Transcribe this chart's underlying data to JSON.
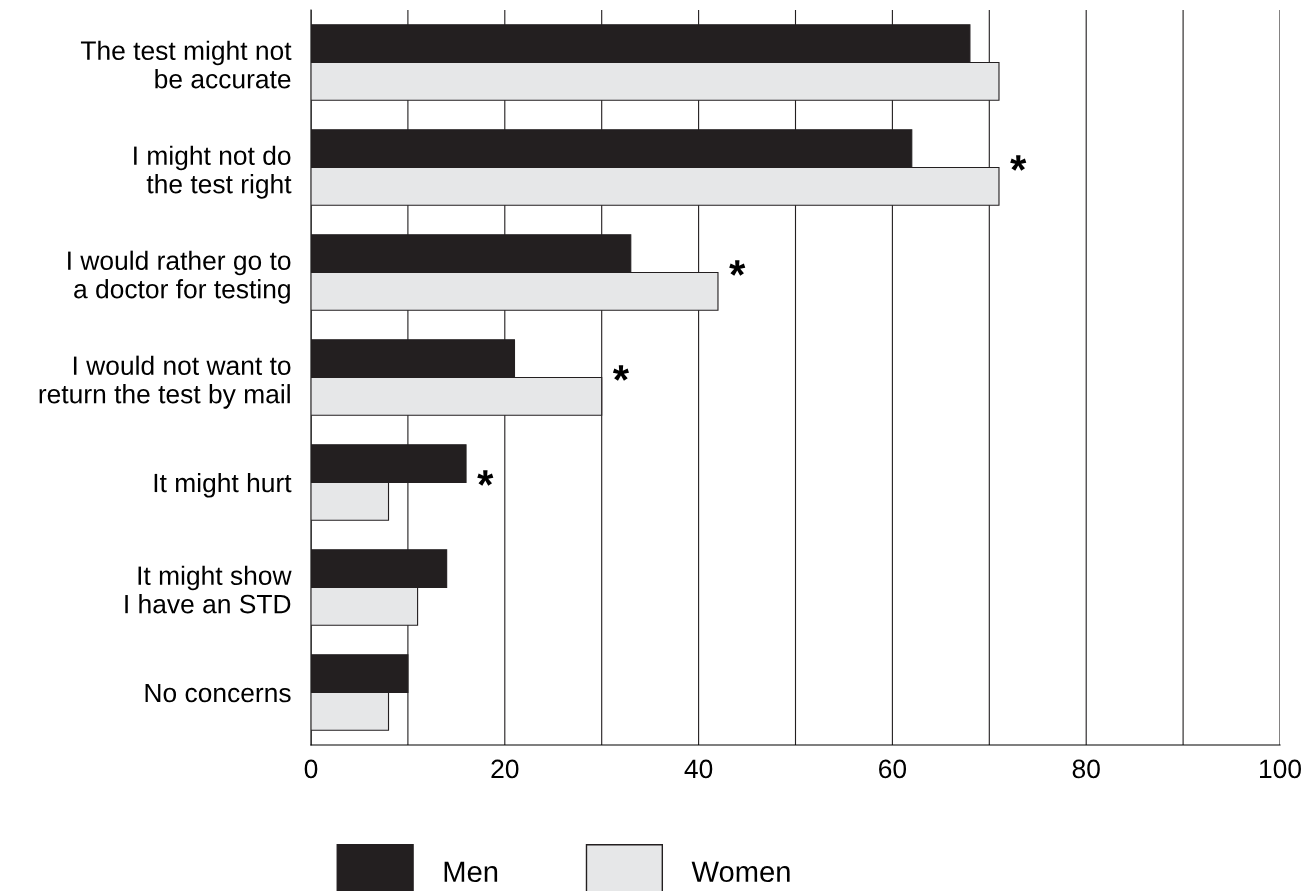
{
  "chart_data": {
    "type": "bar",
    "orientation": "horizontal",
    "categories": [
      "The test might not\nbe accurate",
      "I might not do\nthe test right",
      "I would rather go to\na doctor for testing",
      "I would not want to\nreturn the test by mail",
      "It might hurt",
      "It might show\nI have an STD",
      "No concerns"
    ],
    "series": [
      {
        "name": "Men",
        "color": "#231f20",
        "values": [
          68,
          62,
          33,
          21,
          16,
          14,
          10
        ]
      },
      {
        "name": "Women",
        "color": "#e6e7e8",
        "values": [
          71,
          71,
          42,
          30,
          8,
          11,
          8
        ]
      }
    ],
    "xlim": [
      0,
      100
    ],
    "xticks": [
      0,
      {
        "value": 10,
        "label": null
      },
      20,
      {
        "value": 30,
        "label": null
      },
      40,
      {
        "value": 50,
        "label": null
      },
      60,
      {
        "value": 70,
        "label": null
      },
      80,
      {
        "value": 90,
        "label": null
      },
      100
    ],
    "grid": "x",
    "legend": "bottom",
    "annotations": [
      {
        "text": "*",
        "x": 71,
        "y": "I might not do\nthe test right"
      },
      {
        "text": "*",
        "x": 42,
        "y": "I would rather go to\na doctor for testing"
      },
      {
        "text": "*",
        "x": 30,
        "y": "I would not want to\nreturn the test by mail"
      },
      {
        "text": "*",
        "x": 16,
        "y": "It might hurt"
      }
    ]
  }
}
